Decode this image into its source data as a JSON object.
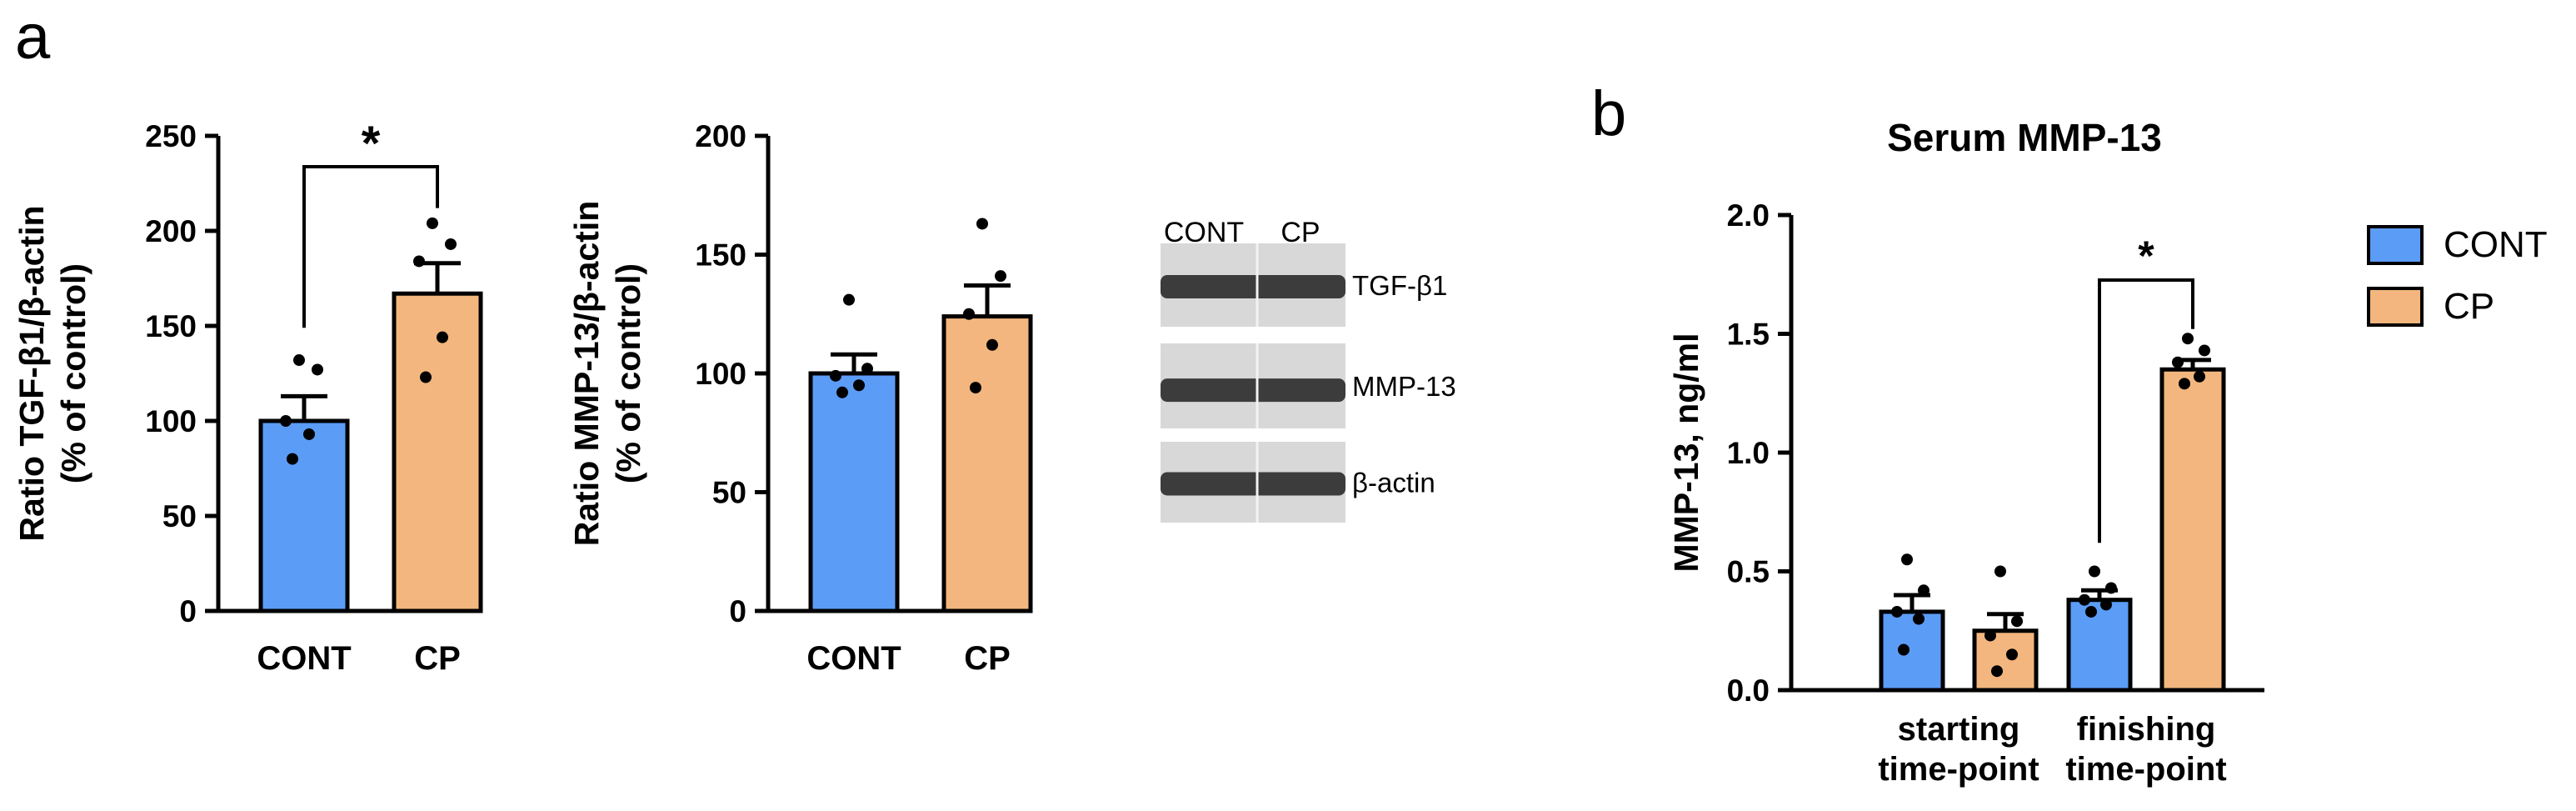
{
  "panels": {
    "a": "a",
    "b": "b"
  },
  "colors": {
    "CONT": "#5b9cf6",
    "CP": "#f2b67e",
    "axis": "#000000"
  },
  "chart_data": [
    {
      "type": "bar",
      "panel": "a",
      "categories": [
        "CONT",
        "CP"
      ],
      "values": [
        100,
        167
      ],
      "errors": [
        13,
        16
      ],
      "points": [
        [
          132,
          127,
          100,
          93,
          80
        ],
        [
          204,
          193,
          184,
          144,
          123
        ]
      ],
      "ylabel_lines": [
        "Ratio TGF-β1/β-actin",
        "(% of control)"
      ],
      "ylim": [
        0,
        250
      ],
      "yticks": [
        0,
        50,
        100,
        150,
        200,
        250
      ],
      "significance": [
        {
          "from": "CONT",
          "to": "CP",
          "label": "*"
        }
      ]
    },
    {
      "type": "bar",
      "panel": "a",
      "categories": [
        "CONT",
        "CP"
      ],
      "values": [
        100,
        124
      ],
      "errors": [
        8,
        13
      ],
      "points": [
        [
          131,
          102,
          99,
          95,
          92
        ],
        [
          163,
          141,
          125,
          112,
          94
        ]
      ],
      "ylabel_lines": [
        "Ratio MMP-13/β-actin",
        "(% of control)"
      ],
      "ylim": [
        0,
        200
      ],
      "yticks": [
        0,
        50,
        100,
        150,
        200
      ]
    },
    {
      "type": "table",
      "panel": "a",
      "kind": "western-blot",
      "columns": [
        "CONT",
        "CP"
      ],
      "rows": [
        "TGF-β1",
        "MMP-13",
        "β-actin"
      ]
    },
    {
      "type": "bar",
      "panel": "b",
      "title": "Serum MMP-13",
      "categories": [
        [
          "starting",
          "time-point"
        ],
        [
          "finishing",
          "time-point"
        ]
      ],
      "series": [
        {
          "name": "CONT",
          "values": [
            0.33,
            0.38
          ],
          "errors": [
            0.07,
            0.04
          ],
          "points": [
            [
              0.55,
              0.42,
              0.33,
              0.3,
              0.17
            ],
            [
              0.5,
              0.43,
              0.38,
              0.36,
              0.33
            ]
          ]
        },
        {
          "name": "CP",
          "values": [
            0.25,
            1.35
          ],
          "errors": [
            0.07,
            0.04
          ],
          "points": [
            [
              0.5,
              0.29,
              0.23,
              0.15,
              0.08
            ],
            [
              1.48,
              1.43,
              1.38,
              1.32,
              1.29
            ]
          ]
        }
      ],
      "ylabel": "MMP-13, ng/ml",
      "ylim": [
        0,
        2.0
      ],
      "yticks": [
        "0.0",
        "0.5",
        "1.0",
        "1.5",
        "2.0"
      ],
      "legend": "right",
      "significance": [
        {
          "group": 1,
          "label": "*"
        }
      ]
    }
  ]
}
